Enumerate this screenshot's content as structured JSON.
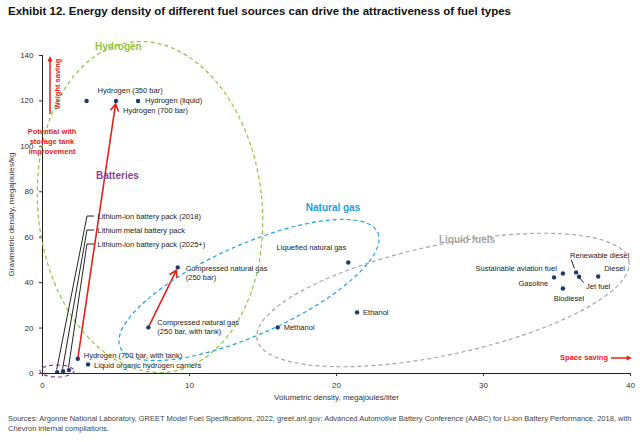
{
  "chart_data": {
    "type": "scatter",
    "title": "Exhibit 12. Energy density of different fuel sources can drive the attractiveness of fuel types",
    "x_label": "Volumetric density, megajoules/liter",
    "y_label": "Gravimetric density, megajoules/kg",
    "xlim": [
      0,
      40
    ],
    "xticks": [
      0,
      10,
      20,
      30,
      40
    ],
    "ylim": [
      0,
      140
    ],
    "yticks": [
      0,
      20,
      40,
      60,
      80,
      100,
      120,
      140
    ],
    "grid": false,
    "color": "#1f3a68",
    "series": [
      {
        "name": "Hydrogen",
        "color": "#8dc63f",
        "labels": [
          "Hydrogen (350 bar)",
          "Hydrogen (700 bar)",
          "Hydrogen (liquid)",
          "Hydrogen (700 bar, with tank)",
          "Liquid organic hydrogen carriers"
        ],
        "x": [
          3.0,
          5.0,
          6.5,
          2.4,
          3.1
        ],
        "values": [
          120,
          120,
          120,
          6.5,
          4.0
        ]
      },
      {
        "name": "Batteries",
        "color": "#8b3f98",
        "labels": [
          "Lithium-ion battery pack (2018)",
          "Lithium metal battery pack",
          "Lithium-ion battery pack (2025+)"
        ],
        "x": [
          1.0,
          1.4,
          1.8
        ],
        "values": [
          0.6,
          1.0,
          1.5
        ]
      },
      {
        "name": "Natural gas",
        "color": "#1ba1e2",
        "labels": [
          "Compressed natural gas (250 bar)",
          "Compressed natural gas (250 bar, with tank)",
          "Liquefied natural gas"
        ],
        "x": [
          9.2,
          7.2,
          20.8
        ],
        "values": [
          46.7,
          20.3,
          48.9
        ]
      },
      {
        "name": "Liquid fuels",
        "color": "#a6a6a6",
        "labels": [
          "Methanol",
          "Ethanol",
          "Gasoline",
          "Sustainable aviation fuel",
          "Renewable diesel",
          "Jet fuel",
          "Biodiesel",
          "Diesel"
        ],
        "x": [
          16.0,
          21.4,
          34.8,
          35.4,
          36.3,
          36.5,
          35.4,
          37.8
        ],
        "values": [
          20.3,
          26.9,
          42.3,
          44.0,
          44.5,
          42.6,
          37.4,
          42.7
        ]
      }
    ],
    "arrows": [
      {
        "from": "Hydrogen (700 bar, with tank)",
        "to": "Hydrogen (700 bar)",
        "color": "#e2231a"
      },
      {
        "from": "Compressed natural gas (250 bar, with tank)",
        "to": "Compressed natural gas (250 bar)",
        "color": "#e2231a"
      }
    ],
    "annotations": [
      {
        "text": "Potential with storage tank improvement",
        "color": "#e2231a"
      },
      {
        "text": "Weight saving",
        "color": "#e2231a"
      },
      {
        "text": "Space saving",
        "color": "#e2231a"
      }
    ],
    "source": "Sources: Argonne National Laboratory, GREET Model Fuel Specifications, 2022, greet.anl.gov; Advanced Automotive Battery Conference (AABC) for Li-ion Battery Performance, 2018, with Chevron internal compilations."
  }
}
